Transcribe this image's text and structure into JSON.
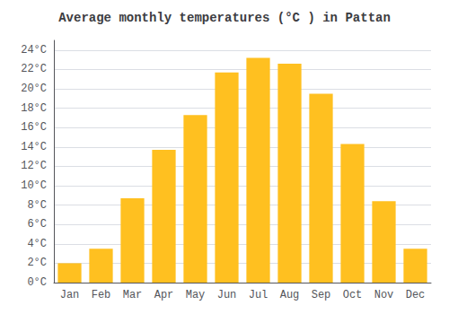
{
  "chart_data": {
    "type": "bar",
    "title": "Average monthly temperatures (°C ) in Pattan",
    "categories": [
      "Jan",
      "Feb",
      "Mar",
      "Apr",
      "May",
      "Jun",
      "Jul",
      "Aug",
      "Sep",
      "Oct",
      "Nov",
      "Dec"
    ],
    "values": [
      2.0,
      3.5,
      8.7,
      13.7,
      17.3,
      21.7,
      23.2,
      22.6,
      19.5,
      14.3,
      8.4,
      3.5
    ],
    "color": "#FFC020",
    "ylim": [
      0,
      25
    ],
    "yticks": [
      {
        "value": 0,
        "label": "0°C"
      },
      {
        "value": 2,
        "label": "2°C"
      },
      {
        "value": 4,
        "label": "4°C"
      },
      {
        "value": 6,
        "label": "6°C"
      },
      {
        "value": 8,
        "label": "8°C"
      },
      {
        "value": 10,
        "label": "10°C"
      },
      {
        "value": 12,
        "label": "12°C"
      },
      {
        "value": 14,
        "label": "14°C"
      },
      {
        "value": 16,
        "label": "16°C"
      },
      {
        "value": 18,
        "label": "18°C"
      },
      {
        "value": 20,
        "label": "20°C"
      },
      {
        "value": 22,
        "label": "22°C"
      },
      {
        "value": 24,
        "label": "24°C"
      }
    ],
    "grid": true
  }
}
